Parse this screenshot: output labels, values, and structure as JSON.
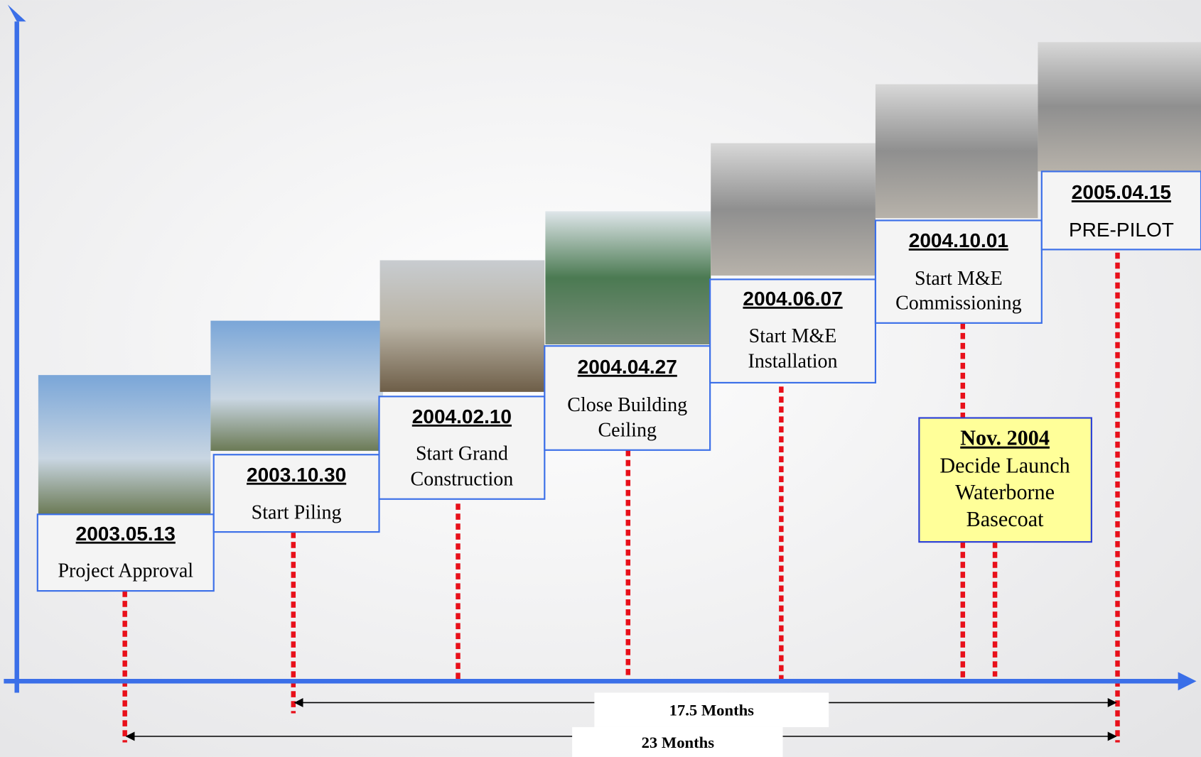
{
  "milestones": [
    {
      "date": "2003.05.13",
      "label": [
        "Project Approval"
      ]
    },
    {
      "date": "2003.10.30",
      "label": [
        "Start Piling"
      ]
    },
    {
      "date": "2004.02.10",
      "label": [
        "Start Grand",
        "Construction"
      ]
    },
    {
      "date": "2004.04.27",
      "label": [
        "Close Building",
        "Ceiling"
      ]
    },
    {
      "date": "2004.06.07",
      "label": [
        "Start M&E",
        "Installation"
      ]
    },
    {
      "date": "2004.10.01",
      "label": [
        "Start M&E",
        "Commissioning"
      ]
    },
    {
      "date": "2005.04.15",
      "label": [
        "PRE-PILOT"
      ]
    }
  ],
  "note": {
    "title": "Nov. 2004",
    "lines": [
      "Decide Launch",
      "Waterborne",
      "Basecoat"
    ]
  },
  "spans": [
    {
      "label": "17.5 Months"
    },
    {
      "label": "23 Months"
    }
  ]
}
